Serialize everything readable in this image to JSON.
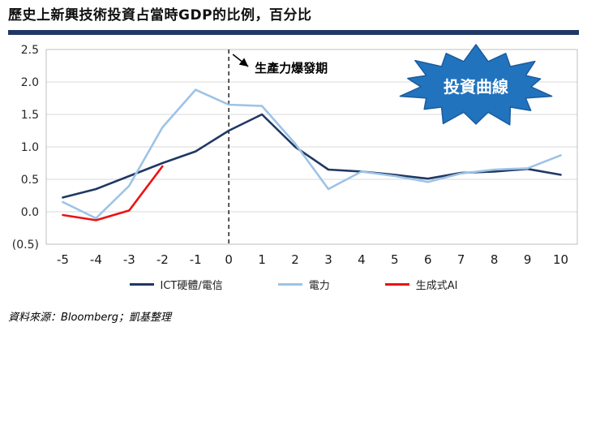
{
  "page": {
    "title": "歷史上新興技術投資占當時GDP的比例，百分比",
    "source": "資料來源：Bloomberg；凱基整理"
  },
  "colors": {
    "divider": "#1F3864",
    "ict": "#1F3864",
    "power": "#9DC3E6",
    "ai": "#EE1111",
    "burst_fill": "#2173BE",
    "burst_stroke": "#1A5C9E",
    "burst_text": "#FFFFFF",
    "grid": "#D9D9D9",
    "plot_border": "#BFBFBF",
    "vline": "#000000"
  },
  "annotation": {
    "label": "生產力爆發期",
    "at_x": 0
  },
  "burst": {
    "label": "投資曲線"
  },
  "chart_data": {
    "type": "line",
    "x": [
      -5,
      -4,
      -3,
      -2,
      -1,
      0,
      1,
      2,
      3,
      4,
      5,
      6,
      7,
      8,
      9,
      10
    ],
    "x_tick_labels": [
      "-5",
      "-4",
      "-3",
      "-2",
      "-1",
      "0",
      "1",
      "2",
      "3",
      "4",
      "5",
      "6",
      "7",
      "8",
      "9",
      "10"
    ],
    "xlabel": "",
    "ylabel": "",
    "ylim": [
      -0.5,
      2.5
    ],
    "yticks": [
      2.5,
      2.0,
      1.5,
      1.0,
      0.5,
      0.0,
      -0.5
    ],
    "ytick_labels": [
      "2.5",
      "2.0",
      "1.5",
      "1.0",
      "0.5",
      "0.0",
      "(0.5)"
    ],
    "grid": true,
    "legend_position": "bottom",
    "vline_x": 0,
    "series": [
      {
        "name": "ICT硬體/電信",
        "color_key": "ict",
        "values": [
          0.22,
          0.35,
          0.55,
          0.75,
          0.93,
          1.25,
          1.5,
          1.0,
          0.65,
          0.62,
          0.57,
          0.51,
          0.6,
          0.62,
          0.66,
          0.57
        ]
      },
      {
        "name": "電力",
        "color_key": "power",
        "values": [
          0.15,
          -0.1,
          0.4,
          1.3,
          1.88,
          1.65,
          1.63,
          1.05,
          0.35,
          0.62,
          0.55,
          0.46,
          0.59,
          0.65,
          0.67,
          0.87
        ]
      },
      {
        "name": "生成式AI",
        "color_key": "ai",
        "values": [
          -0.05,
          -0.13,
          0.02,
          0.7,
          null,
          null,
          null,
          null,
          null,
          null,
          null,
          null,
          null,
          null,
          null,
          null
        ]
      }
    ]
  }
}
